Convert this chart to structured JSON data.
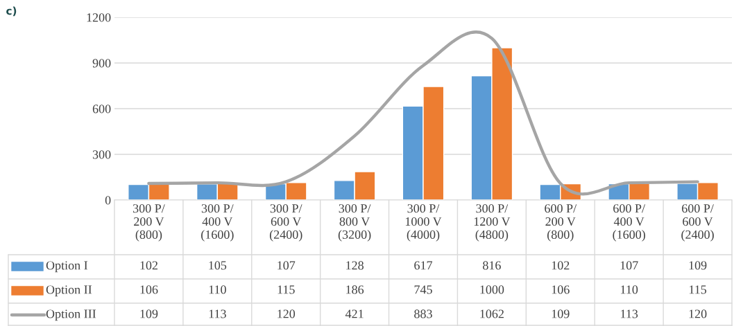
{
  "chart_data": {
    "type": "bar",
    "title": "c)",
    "categories": [
      "300 P/\n200 V\n(800)",
      "300 P/\n400 V\n(1600)",
      "300 P/\n600 V\n(2400)",
      "300 P/\n800 V\n(3200)",
      "300 P/\n1000 V\n(4000)",
      "300 P/\n1200 V\n(4800)",
      "600 P/\n200 V\n(800)",
      "600 P/\n400 V\n(1600)",
      "600 P/\n600 V\n(2400)"
    ],
    "series": [
      {
        "name": "Option I",
        "color": "#5b9bd5",
        "values": [
          102,
          105,
          107,
          128,
          617,
          816,
          102,
          107,
          109
        ]
      },
      {
        "name": "Option II",
        "color": "#ed7d31",
        "values": [
          106,
          110,
          115,
          186,
          745,
          1000,
          106,
          110,
          115
        ]
      },
      {
        "name": "Option III",
        "type": "line",
        "color": "#a5a5a5",
        "values": [
          109,
          113,
          120,
          421,
          883,
          1062,
          109,
          113,
          120
        ]
      }
    ],
    "ylim": [
      0,
      1200
    ],
    "yticks": [
      0,
      300,
      600,
      900,
      1200
    ],
    "grid": "y",
    "legend": "bottom",
    "data_labels": true
  }
}
